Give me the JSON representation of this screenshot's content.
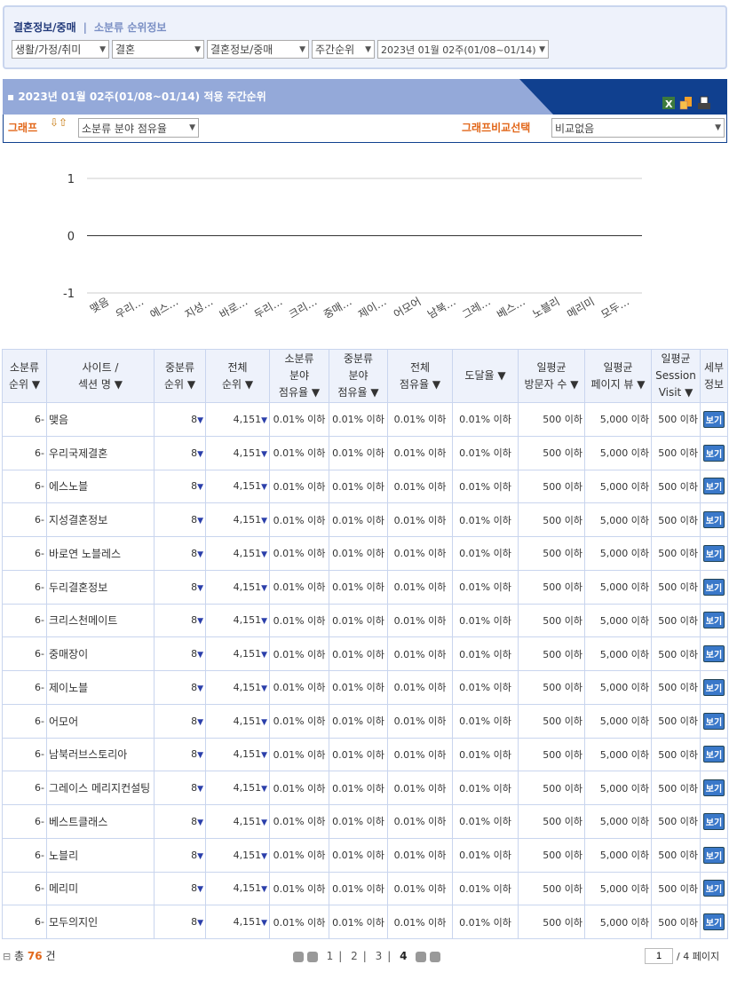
{
  "breadcrumb": {
    "category": "결혼정보/중매",
    "section": "소분류 순위정보"
  },
  "filters": [
    "생활/가정/취미",
    "결혼",
    "결혼정보/중매",
    "주간순위",
    "2023년 01월 02주(01/08~01/14)"
  ],
  "panel": {
    "title": "2023년 01월 02주(01/08~01/14) 적용 주간순위",
    "graph_label": "그래프",
    "graph_select": "소분류 분야 점유율",
    "compare_label": "그래프비교선택",
    "compare_select": "비교없음",
    "icons": [
      "excel-icon",
      "export-icon",
      "print-icon"
    ]
  },
  "chart_data": {
    "type": "line",
    "categories": [
      "맺음",
      "우리…",
      "에스…",
      "지성…",
      "바로…",
      "두리…",
      "크리…",
      "중매…",
      "제이…",
      "어모어",
      "남북…",
      "그레…",
      "베스…",
      "노블리",
      "메리미",
      "모두…"
    ],
    "values": [
      0,
      0,
      0,
      0,
      0,
      0,
      0,
      0,
      0,
      0,
      0,
      0,
      0,
      0,
      0,
      0
    ],
    "ylim": [
      -1,
      1
    ],
    "yticks": [
      "1",
      "0",
      "-1"
    ],
    "grid": true
  },
  "table": {
    "headers": [
      [
        "소분류",
        "순위 ▼"
      ],
      [
        "사이트 /",
        "섹션 명 ▼"
      ],
      [
        "중분류",
        "순위 ▼"
      ],
      [
        "전체",
        "순위 ▼"
      ],
      [
        "소분류",
        "분야",
        "점유율 ▼"
      ],
      [
        "중분류",
        "분야",
        "점유율 ▼"
      ],
      [
        "전체",
        "점유율 ▼"
      ],
      [
        "도달율 ▼"
      ],
      [
        "일평균",
        "방문자 수 ▼"
      ],
      [
        "일평균",
        "페이지 뷰 ▼"
      ],
      [
        "일평균",
        "Session",
        "Visit ▼"
      ],
      [
        "세부",
        "정보"
      ]
    ],
    "row_values": {
      "rank": "6-",
      "mid_rank": "8",
      "total_rank": "4,151",
      "share": "0.01% 이하",
      "visitors": "500 이하",
      "pageviews": "5,000 이하",
      "visits": "500 이하",
      "view": "보기"
    },
    "sites": [
      "맺음",
      "우리국제결혼",
      "에스노블",
      "지성결혼정보",
      "바로연 노블레스",
      "두리결혼정보",
      "크리스천메이트",
      "중매장이",
      "제이노블",
      "어모어",
      "남북러브스토리아",
      "그레이스 메리지컨설팅",
      "베스트클래스",
      "노블리",
      "메리미",
      "모두의지인"
    ]
  },
  "footer": {
    "total_prefix": "총",
    "total": "76",
    "total_suffix": "건",
    "pages": [
      "1",
      "2",
      "3",
      "4"
    ],
    "current_page": "4",
    "page_input": "1",
    "page_total": "/ 4 페이지"
  },
  "colors": {
    "accent": "#10408f",
    "orange": "#e2671a"
  }
}
